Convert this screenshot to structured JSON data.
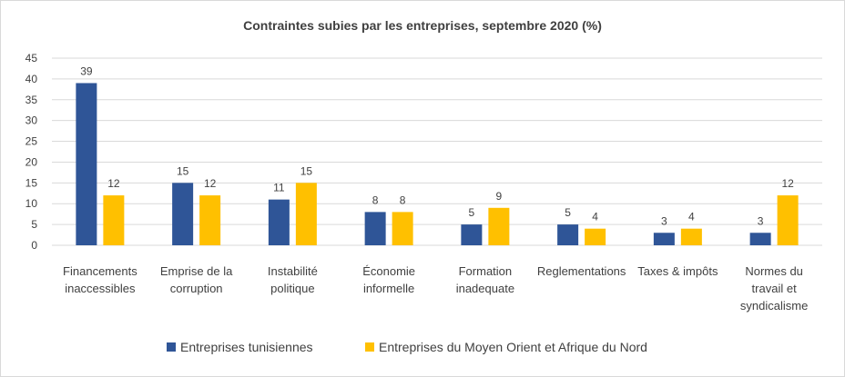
{
  "chart_data": {
    "type": "bar",
    "title": "Contraintes subies par les entreprises, septembre 2020 (%)",
    "xlabel": "",
    "ylabel": "",
    "ylim": [
      0,
      45
    ],
    "yticks": [
      0,
      5,
      10,
      15,
      20,
      25,
      30,
      35,
      40,
      45
    ],
    "grid": true,
    "legend_position": "bottom",
    "categories": [
      [
        "Financements",
        "inaccessibles"
      ],
      [
        "Emprise de la",
        "corruption"
      ],
      [
        "Instabilité",
        "politique"
      ],
      [
        "Économie",
        "informelle"
      ],
      [
        "Formation",
        "inadequate"
      ],
      [
        "Reglementations"
      ],
      [
        "Taxes & impôts"
      ],
      [
        "Normes du",
        "travail et",
        "syndicalisme"
      ]
    ],
    "series": [
      {
        "name": "Entreprises tunisiennes",
        "color": "#2f5597",
        "values": [
          39,
          15,
          11,
          8,
          5,
          5,
          3,
          3
        ]
      },
      {
        "name": "Entreprises du Moyen Orient et Afrique du Nord",
        "color": "#ffc000",
        "values": [
          12,
          12,
          15,
          8,
          9,
          4,
          4,
          12
        ]
      }
    ]
  }
}
